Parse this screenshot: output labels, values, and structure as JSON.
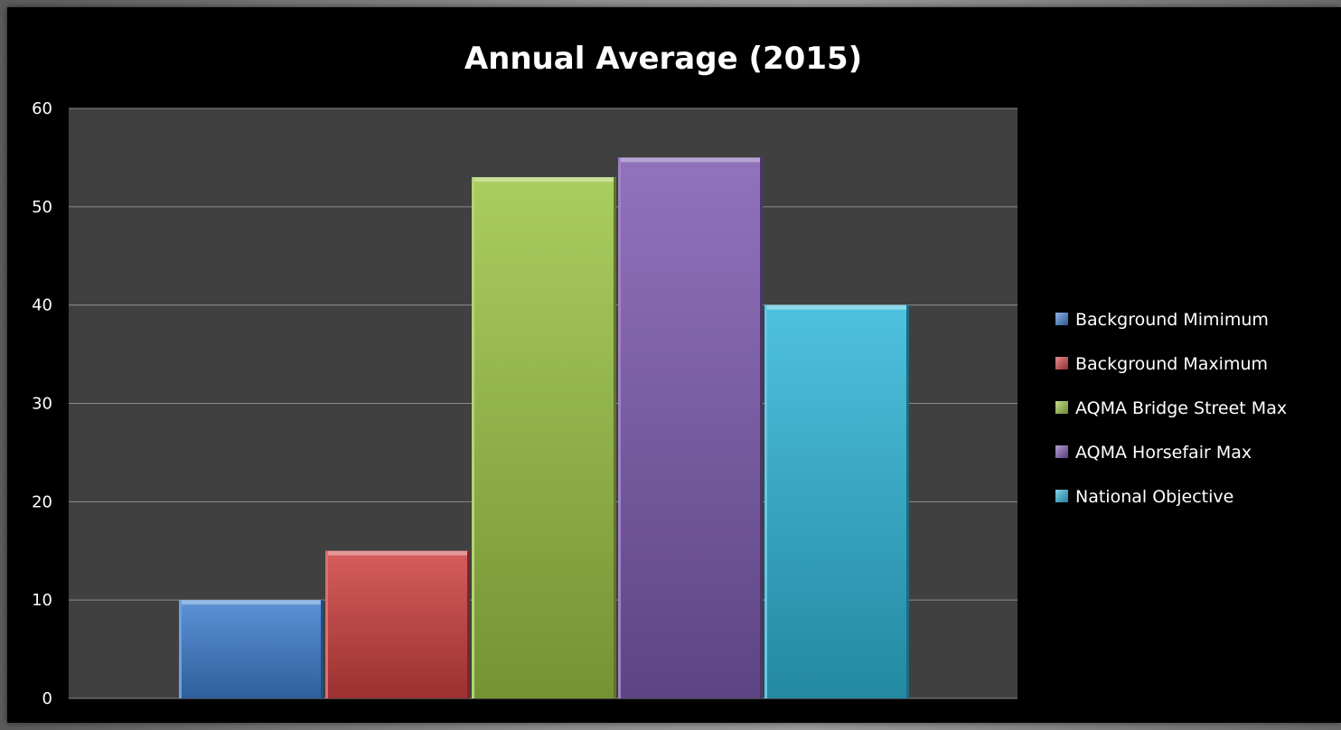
{
  "chart_data": {
    "type": "bar",
    "title": "Annual Average (2015)",
    "xlabel": "",
    "ylabel": "",
    "ylim": [
      0,
      60
    ],
    "yticks": [
      0,
      10,
      20,
      30,
      40,
      50,
      60
    ],
    "grid": true,
    "legend_position": "right",
    "series": [
      {
        "name": "Background Mimimum",
        "values": [
          10
        ],
        "color": "#3f7fd0"
      },
      {
        "name": "Background Maximum",
        "values": [
          15
        ],
        "color": "#cf4040"
      },
      {
        "name": "AQMA Bridge Street Max",
        "values": [
          53
        ],
        "color": "#9bc444"
      },
      {
        "name": "AQMA Horsefair Max",
        "values": [
          55
        ],
        "color": "#7d5ab0"
      },
      {
        "name": "National Objective",
        "values": [
          40
        ],
        "color": "#2fb6d8"
      }
    ],
    "plot_background": "#404040",
    "figure_background": "#000000"
  }
}
